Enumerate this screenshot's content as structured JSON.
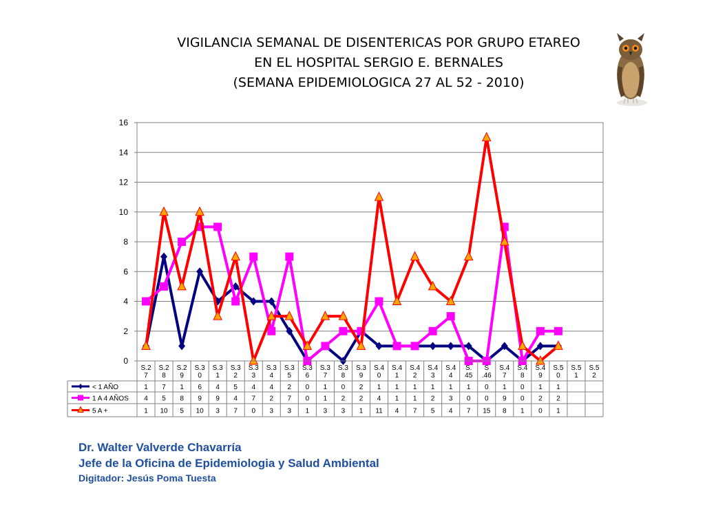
{
  "header": {
    "line1": "VIGILANCIA SEMANAL DE DISENTERICAS POR GRUPO ETAREO",
    "line2": "EN EL HOSPITAL SERGIO E. BERNALES",
    "line3": "(SEMANA EPIDEMIOLOGICA 27 AL 52 - 2010)"
  },
  "chart_data": {
    "type": "line",
    "categories": [
      [
        "S.2",
        "7"
      ],
      [
        "S.2",
        "8"
      ],
      [
        "S.2",
        "9"
      ],
      [
        "S.3",
        "0"
      ],
      [
        "S.3",
        "1"
      ],
      [
        "S.3",
        "2"
      ],
      [
        "S.3",
        "3"
      ],
      [
        "S.3",
        "4"
      ],
      [
        "S.3",
        "5"
      ],
      [
        "S.3",
        "6"
      ],
      [
        "S.3",
        "7"
      ],
      [
        "S.3",
        "8"
      ],
      [
        "S.3",
        "9"
      ],
      [
        "S.4",
        "0"
      ],
      [
        "S.4",
        "1"
      ],
      [
        "S.4",
        "2"
      ],
      [
        "S.4",
        "3"
      ],
      [
        "S.4",
        "4"
      ],
      [
        "S.",
        "45"
      ],
      [
        "S",
        ".46"
      ],
      [
        "S.4",
        "7"
      ],
      [
        "S.4",
        "8"
      ],
      [
        "S.4",
        "9"
      ],
      [
        "S.5",
        "0"
      ],
      [
        "S.5",
        "1"
      ],
      [
        "S.5",
        "2"
      ]
    ],
    "ylim": [
      0,
      16
    ],
    "yticks": [
      "0",
      "2",
      "4",
      "6",
      "8",
      "10",
      "12",
      "14",
      "16"
    ],
    "grid": true,
    "series": [
      {
        "name": "< 1 AÑO",
        "color": "#000080",
        "marker": "diamond",
        "values": [
          1,
          7,
          1,
          6,
          4,
          5,
          4,
          4,
          2,
          0,
          1,
          0,
          2,
          1,
          1,
          1,
          1,
          1,
          1,
          0,
          1,
          0,
          1,
          1,
          null,
          null
        ]
      },
      {
        "name": "1 A 4 AÑOS",
        "color": "#ff00ff",
        "marker": "square",
        "values": [
          4,
          5,
          8,
          9,
          9,
          4,
          7,
          2,
          7,
          0,
          1,
          2,
          2,
          4,
          1,
          1,
          2,
          3,
          0,
          0,
          9,
          0,
          2,
          2,
          null,
          null
        ]
      },
      {
        "name": "5 A +",
        "color": "#ff0000",
        "marker": "triangle",
        "marker_fill": "#ffa500",
        "values": [
          1,
          10,
          5,
          10,
          3,
          7,
          0,
          3,
          3,
          1,
          3,
          3,
          1,
          11,
          4,
          7,
          5,
          4,
          7,
          15,
          8,
          1,
          0,
          1,
          null,
          null
        ]
      }
    ]
  },
  "owl_icon": "owl-icon",
  "footer": {
    "author": "Dr.  Walter Valverde Chavarría",
    "role": "Jefe de la Oficina de Epidemiologia y  Salud Ambiental",
    "typist": "Digitador: Jesús Poma Tuesta"
  }
}
